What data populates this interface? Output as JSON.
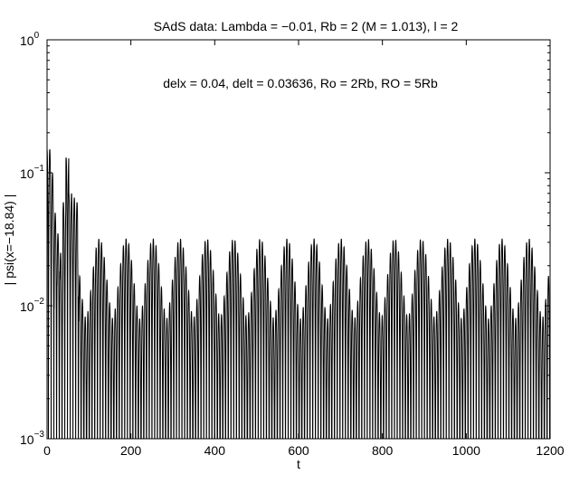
{
  "chart_data": {
    "type": "line",
    "title": "SAdS data: Lambda = −0.01, Rb = 2 (M = 1.013), l = 2",
    "annotation": "delx = 0.04, delt = 0.03636, Ro = 2Rb, RO = 5Rb",
    "xlabel": "t",
    "ylabel": "| psi(x=−18.84) |",
    "xlim": [
      0,
      1200
    ],
    "ylim": [
      0.001,
      1
    ],
    "yscale": "log",
    "xticks": [
      0,
      200,
      400,
      600,
      800,
      1000,
      1200
    ],
    "xtick_labels": [
      "0",
      "200",
      "400",
      "600",
      "800",
      "1000",
      "1200"
    ],
    "yticks": [
      0.001,
      0.01,
      0.1,
      1
    ],
    "ytick_labels": [
      {
        "base": "10",
        "exp": "−3"
      },
      {
        "base": "10",
        "exp": "−2"
      },
      {
        "base": "10",
        "exp": "−1"
      },
      {
        "base": "10",
        "exp": "0"
      }
    ],
    "grid": false,
    "line_color": "#000000",
    "series": [
      {
        "description_only_for_envelope": true,
        "oscillation_period": 6.5,
        "early_peaks": [
          {
            "t": 3,
            "y": 0.15
          },
          {
            "t": 10,
            "y": 0.1
          },
          {
            "t": 17,
            "y": 0.05
          },
          {
            "t": 24,
            "y": 0.035
          },
          {
            "t": 31,
            "y": 0.025
          },
          {
            "t": 38,
            "y": 0.06
          },
          {
            "t": 45,
            "y": 0.13
          },
          {
            "t": 52,
            "y": 0.07
          },
          {
            "t": 59,
            "y": 0.065
          },
          {
            "t": 66,
            "y": 0.06
          },
          {
            "t": 73,
            "y": 0.04
          }
        ],
        "beat_period": 64,
        "beat_peak_level": 0.032,
        "beat_min_level": 0.008,
        "beat_first_max_t": 125
      }
    ]
  }
}
